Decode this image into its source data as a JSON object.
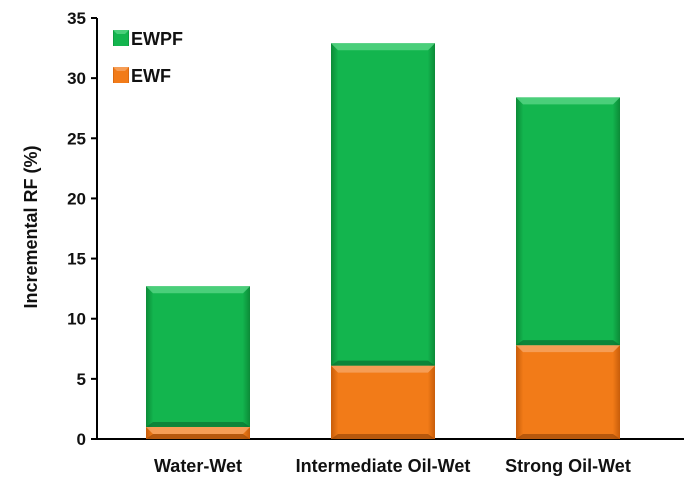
{
  "chart_data": {
    "type": "bar",
    "stacked": true,
    "categories": [
      "Water-Wet",
      "Intermediate Oil-Wet",
      "Strong Oil-Wet"
    ],
    "series": [
      {
        "name": "EWF",
        "values": [
          1.0,
          6.1,
          7.8
        ],
        "color": "#f07a18"
      },
      {
        "name": "EWPF",
        "values": [
          11.7,
          26.8,
          20.6
        ],
        "color": "#12b24c"
      }
    ],
    "totals": [
      12.7,
      32.9,
      28.4
    ],
    "title": "",
    "xlabel": "",
    "ylabel": "Incremental RF (%)",
    "ylim": [
      0,
      35
    ],
    "yticks": [
      0,
      5,
      10,
      15,
      20,
      25,
      30,
      35
    ],
    "grid": false,
    "legend": {
      "position": "top-left",
      "order": [
        "EWPF",
        "EWF"
      ]
    }
  }
}
